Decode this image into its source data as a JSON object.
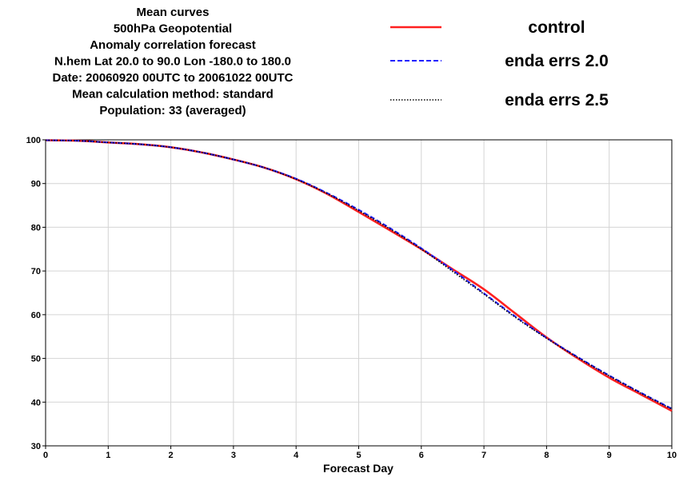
{
  "chart_data": {
    "type": "line",
    "title_lines": [
      "Mean curves",
      "500hPa Geopotential",
      "Anomaly correlation forecast",
      "N.hem  Lat  20.0 to 90.0 Lon  -180.0 to  180.0",
      "Date: 20060920 00UTC to 20061022 00UTC",
      "Mean calculation method: standard",
      "Population: 33 (averaged)"
    ],
    "xlabel": "Forecast Day",
    "ylabel": "",
    "xlim": [
      0,
      10
    ],
    "ylim": [
      30,
      100
    ],
    "x_ticks": [
      0,
      1,
      2,
      3,
      4,
      5,
      6,
      7,
      8,
      9,
      10
    ],
    "y_ticks": [
      30,
      40,
      50,
      60,
      70,
      80,
      90,
      100
    ],
    "grid": true,
    "legend_position": "top-right",
    "x": [
      0,
      0.5,
      1,
      1.5,
      2,
      2.5,
      3,
      3.5,
      4,
      4.5,
      5,
      5.5,
      6,
      6.5,
      7,
      7.5,
      8,
      8.5,
      9,
      9.5,
      10
    ],
    "series": [
      {
        "name": "control",
        "color": "#ff2020",
        "dash": "solid",
        "values": [
          99.9,
          99.8,
          99.4,
          99.0,
          98.3,
          97.1,
          95.5,
          93.6,
          91.0,
          87.6,
          83.5,
          79.3,
          75.0,
          70.4,
          65.8,
          60.3,
          54.8,
          50.0,
          45.6,
          41.8,
          38.0
        ]
      },
      {
        "name": "enda errs 2.0",
        "color": "#2020ff",
        "dash": "dashed",
        "values": [
          99.9,
          99.8,
          99.4,
          99.0,
          98.3,
          97.1,
          95.5,
          93.6,
          91.1,
          87.8,
          84.0,
          79.8,
          75.2,
          70.2,
          64.9,
          59.6,
          54.7,
          50.3,
          46.1,
          42.2,
          38.5
        ]
      },
      {
        "name": "enda errs 2.5",
        "color": "#000000",
        "dash": "dotted",
        "values": [
          99.9,
          99.8,
          99.4,
          99.0,
          98.3,
          97.1,
          95.5,
          93.6,
          91.0,
          87.7,
          83.8,
          79.6,
          75.0,
          69.9,
          64.7,
          59.4,
          54.6,
          50.2,
          46.0,
          42.1,
          38.4
        ]
      }
    ]
  }
}
